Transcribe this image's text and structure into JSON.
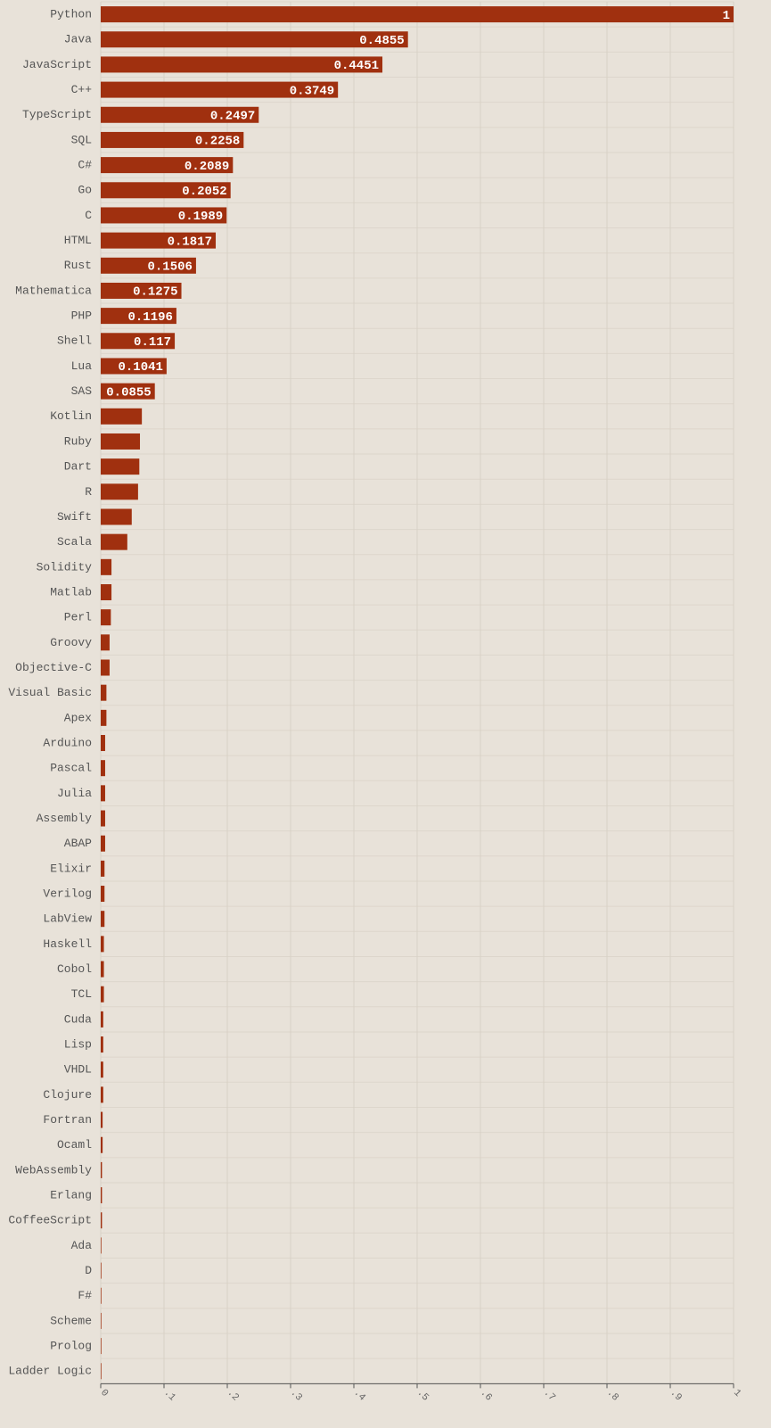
{
  "chart_data": {
    "type": "bar",
    "orientation": "horizontal",
    "color": "#a0300f",
    "grid": true,
    "categories": [
      "Python",
      "Java",
      "JavaScript",
      "C++",
      "TypeScript",
      "SQL",
      "C#",
      "Go",
      "C",
      "HTML",
      "Rust",
      "Mathematica",
      "PHP",
      "Shell",
      "Lua",
      "SAS",
      "Kotlin",
      "Ruby",
      "Dart",
      "R",
      "Swift",
      "Scala",
      "Solidity",
      "Matlab",
      "Perl",
      "Groovy",
      "Objective-C",
      "Visual Basic",
      "Apex",
      "Arduino",
      "Pascal",
      "Julia",
      "Assembly",
      "ABAP",
      "Elixir",
      "Verilog",
      "LabView",
      "Haskell",
      "Cobol",
      "TCL",
      "Cuda",
      "Lisp",
      "VHDL",
      "Clojure",
      "Fortran",
      "Ocaml",
      "WebAssembly",
      "Erlang",
      "CoffeeScript",
      "Ada",
      "D",
      "F#",
      "Scheme",
      "Prolog",
      "Ladder Logic"
    ],
    "values": [
      1,
      0.4855,
      0.4451,
      0.3749,
      0.2497,
      0.2258,
      0.2089,
      0.2052,
      0.1989,
      0.1817,
      0.1506,
      0.1275,
      0.1196,
      0.117,
      0.1041,
      0.0855,
      0.065,
      0.062,
      0.061,
      0.059,
      0.049,
      0.042,
      0.017,
      0.017,
      0.016,
      0.014,
      0.014,
      0.009,
      0.009,
      0.007,
      0.007,
      0.007,
      0.007,
      0.007,
      0.006,
      0.006,
      0.006,
      0.005,
      0.005,
      0.005,
      0.004,
      0.004,
      0.004,
      0.004,
      0.003,
      0.003,
      0.002,
      0.002,
      0.002,
      0.001,
      0.001,
      0.001,
      0.001,
      0.001,
      0.001
    ],
    "value_labels": [
      "1",
      "0.4855",
      "0.4451",
      "0.3749",
      "0.2497",
      "0.2258",
      "0.2089",
      "0.2052",
      "0.1989",
      "0.1817",
      "0.1506",
      "0.1275",
      "0.1196",
      "0.117",
      "0.1041",
      "0.0855",
      null,
      null,
      null,
      null,
      null,
      null,
      null,
      null,
      null,
      null,
      null,
      null,
      null,
      null,
      null,
      null,
      null,
      null,
      null,
      null,
      null,
      null,
      null,
      null,
      null,
      null,
      null,
      null,
      null,
      null,
      null,
      null,
      null,
      null,
      null,
      null,
      null,
      null,
      null
    ],
    "xlim": [
      0,
      1
    ],
    "xticks": [
      0,
      {
        "value": 0.1,
        "label": ".1"
      },
      {
        "value": 0.2,
        "label": ".2"
      },
      {
        "value": 0.3,
        "label": ".3"
      },
      {
        "value": 0.4,
        "label": ".4"
      },
      {
        "value": 0.5,
        "label": ".5"
      },
      {
        "value": 0.6,
        "label": ".6"
      },
      {
        "value": 0.7,
        "label": ".7"
      },
      {
        "value": 0.8,
        "label": ".8"
      },
      {
        "value": 0.9,
        "label": ".9"
      },
      1
    ]
  }
}
